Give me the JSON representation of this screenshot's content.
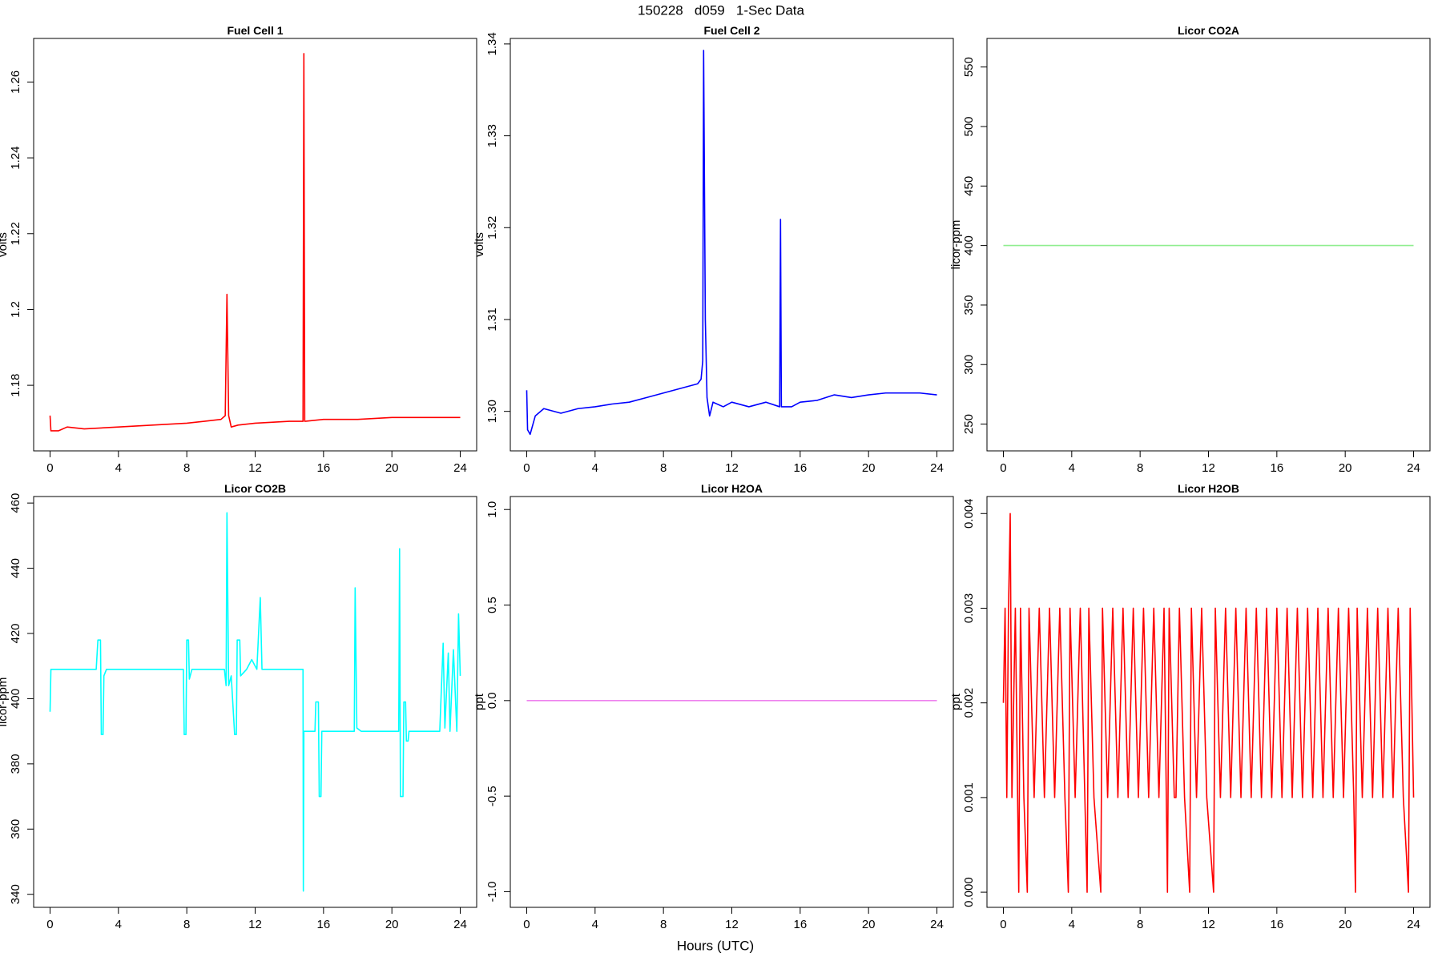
{
  "title": "150228   d059   1-Sec Data",
  "x_label": "Hours (UTC)",
  "chart_data": [
    {
      "type": "line",
      "title": "Fuel Cell 1",
      "y_label": "volts",
      "color": "#ff0000",
      "x": [
        0,
        0.05,
        0.5,
        1,
        2,
        4,
        6,
        8,
        10,
        10.25,
        10.35,
        10.45,
        10.6,
        11,
        12,
        14,
        14.8,
        14.85,
        14.9,
        16,
        18,
        20,
        22,
        24
      ],
      "values": [
        1.172,
        1.168,
        1.168,
        1.169,
        1.1685,
        1.169,
        1.1695,
        1.17,
        1.171,
        1.172,
        1.204,
        1.172,
        1.169,
        1.1695,
        1.17,
        1.1705,
        1.1705,
        1.2675,
        1.1705,
        1.171,
        1.171,
        1.1715,
        1.1715,
        1.1715
      ],
      "xlim": [
        -0.96,
        24.96
      ],
      "xticks": [
        0,
        4,
        8,
        12,
        16,
        20,
        24
      ],
      "ylim": [
        1.1627,
        1.2715
      ],
      "yticks": [
        1.18,
        1.2,
        1.22,
        1.24,
        1.26
      ]
    },
    {
      "type": "line",
      "title": "Fuel Cell 2",
      "y_label": "volts",
      "color": "#0000ff",
      "x": [
        0,
        0.05,
        0.2,
        0.5,
        1,
        2,
        3,
        4,
        5,
        6,
        7,
        8,
        9,
        10,
        10.2,
        10.3,
        10.35,
        10.45,
        10.55,
        10.7,
        10.9,
        11.5,
        12,
        13,
        14,
        14.8,
        14.85,
        14.9,
        15.5,
        16,
        17,
        18,
        19,
        20,
        21,
        22,
        23,
        24
      ],
      "values": [
        1.3023,
        1.298,
        1.2975,
        1.2995,
        1.3003,
        1.2998,
        1.3003,
        1.3005,
        1.3008,
        1.301,
        1.3015,
        1.302,
        1.3025,
        1.303,
        1.3035,
        1.3055,
        1.3393,
        1.31,
        1.3015,
        1.2995,
        1.301,
        1.3005,
        1.301,
        1.3005,
        1.301,
        1.3005,
        1.3209,
        1.3005,
        1.3005,
        1.301,
        1.3012,
        1.3018,
        1.3015,
        1.3018,
        1.302,
        1.302,
        1.302,
        1.3018
      ],
      "xlim": [
        -0.96,
        24.96
      ],
      "xticks": [
        0,
        4,
        8,
        12,
        16,
        20,
        24
      ],
      "ylim": [
        1.2957,
        1.3406
      ],
      "yticks": [
        {
          "value": 1.3,
          "label": "1.30"
        },
        1.31,
        1.32,
        1.33,
        1.34
      ]
    },
    {
      "type": "line",
      "title": "Licor CO2A",
      "y_label": "licor-ppm",
      "color": "#90ee90",
      "x": [
        0,
        24
      ],
      "values": [
        400,
        400
      ],
      "xlim": [
        -0.96,
        24.96
      ],
      "xticks": [
        0,
        4,
        8,
        12,
        16,
        20,
        24
      ],
      "ylim": [
        227.5,
        574
      ],
      "yticks": [
        250,
        300,
        350,
        400,
        450,
        500,
        550
      ]
    },
    {
      "type": "line",
      "title": "Licor CO2B",
      "y_label": "licor-ppm",
      "color": "#00ffff",
      "x": [
        0,
        0.05,
        2.7,
        2.8,
        2.95,
        3.0,
        3.1,
        3.15,
        3.3,
        7.8,
        7.85,
        7.95,
        8.0,
        8.1,
        8.15,
        8.3,
        10.2,
        10.3,
        10.35,
        10.45,
        10.6,
        10.8,
        10.9,
        10.95,
        11.1,
        11.15,
        11.5,
        11.8,
        12.1,
        12.3,
        12.4,
        14.8,
        14.82,
        14.85,
        15.5,
        15.55,
        15.7,
        15.75,
        15.85,
        15.9,
        17.8,
        17.85,
        17.95,
        18.2,
        20.4,
        20.45,
        20.5,
        20.65,
        20.7,
        20.8,
        20.85,
        20.95,
        21,
        22.8,
        23,
        23.1,
        23.3,
        23.4,
        23.6,
        23.8,
        23.9,
        24
      ],
      "values": [
        396,
        409,
        409,
        418,
        418,
        389,
        389,
        407,
        409,
        409,
        389,
        389,
        418,
        418,
        406,
        409,
        409,
        404,
        457,
        404,
        407,
        389,
        389,
        418,
        418,
        407,
        409,
        412,
        409,
        431,
        409,
        409,
        341,
        390,
        390,
        399,
        399,
        370,
        370,
        390,
        390,
        434,
        391,
        390,
        390,
        446,
        370,
        370,
        399,
        399,
        387,
        387,
        390,
        390,
        417,
        391,
        414,
        390,
        415,
        390,
        426,
        407
      ],
      "xlim": [
        -0.96,
        24.96
      ],
      "xticks": [
        0,
        4,
        8,
        12,
        16,
        20,
        24
      ],
      "ylim": [
        336,
        462
      ],
      "yticks": [
        340,
        360,
        380,
        400,
        420,
        440,
        460
      ]
    },
    {
      "type": "line",
      "title": "Licor H2OA",
      "y_label": "ppt",
      "color": "#ee82ee",
      "x": [
        0,
        24
      ],
      "values": [
        0,
        0
      ],
      "xlim": [
        -0.96,
        24.96
      ],
      "xticks": [
        0,
        4,
        8,
        12,
        16,
        20,
        24
      ],
      "ylim": [
        -1.082,
        1.068
      ],
      "yticks": [
        {
          "value": -1,
          "label": "-1.0"
        },
        -0.5,
        {
          "value": 0,
          "label": "0.0"
        },
        0.5,
        {
          "value": 1,
          "label": "1.0"
        }
      ]
    },
    {
      "type": "line",
      "title": "Licor H2OB",
      "y_label": "ppt",
      "color": "#ff0000",
      "x": [
        0,
        0.1,
        0.2,
        0.3,
        0.4,
        0.5,
        0.7,
        0.9,
        1.0,
        1.2,
        1.4,
        1.5,
        1.8,
        2.1,
        2.4,
        2.7,
        3.0,
        3.3,
        3.6,
        3.8,
        3.9,
        4.2,
        4.5,
        4.9,
        5.0,
        5.3,
        5.7,
        5.8,
        6.1,
        6.4,
        6.7,
        7.0,
        7.3,
        7.6,
        7.9,
        8.2,
        8.5,
        8.8,
        9.1,
        9.4,
        9.6,
        9.7,
        10.0,
        10.1,
        10.3,
        10.6,
        10.9,
        11.0,
        11.3,
        11.6,
        11.9,
        12.3,
        12.4,
        12.7,
        13.0,
        13.3,
        13.6,
        13.9,
        14.2,
        14.5,
        14.8,
        15.1,
        15.4,
        15.7,
        16.0,
        16.3,
        16.6,
        16.9,
        17.2,
        17.5,
        17.8,
        18.1,
        18.4,
        18.7,
        19.0,
        19.3,
        19.6,
        19.9,
        20.2,
        20.5,
        20.6,
        20.7,
        21.0,
        21.3,
        21.6,
        21.9,
        22.2,
        22.5,
        22.8,
        23.1,
        23.4,
        23.7,
        23.8,
        24.0
      ],
      "values": [
        0.002,
        0.003,
        0.001,
        0.003,
        0.004,
        0.001,
        0.003,
        0,
        0.003,
        0.001,
        0,
        0.003,
        0.001,
        0.003,
        0.001,
        0.003,
        0.001,
        0.003,
        0.001,
        0,
        0.003,
        0.001,
        0.003,
        0,
        0.003,
        0.001,
        0,
        0.003,
        0.001,
        0.003,
        0.001,
        0.003,
        0.001,
        0.003,
        0.001,
        0.003,
        0.001,
        0.003,
        0.001,
        0.003,
        0,
        0.003,
        0.001,
        0.001,
        0.003,
        0.001,
        0,
        0.003,
        0.001,
        0.003,
        0.001,
        0,
        0.003,
        0.001,
        0.003,
        0.001,
        0.003,
        0.001,
        0.003,
        0.001,
        0.003,
        0.001,
        0.003,
        0.001,
        0.003,
        0.001,
        0.003,
        0.001,
        0.003,
        0.001,
        0.003,
        0.001,
        0.003,
        0.001,
        0.003,
        0.001,
        0.003,
        0.001,
        0.003,
        0.001,
        0,
        0.003,
        0.001,
        0.003,
        0.001,
        0.003,
        0.001,
        0.003,
        0.001,
        0.003,
        0.001,
        0,
        0.003,
        0.001
      ],
      "xlim": [
        -0.96,
        24.96
      ],
      "xticks": [
        0,
        4,
        8,
        12,
        16,
        20,
        24
      ],
      "ylim": [
        -0.00016,
        0.00418
      ],
      "yticks": [
        {
          "value": 0,
          "label": "0.000"
        },
        {
          "value": 0.001,
          "label": "0.001"
        },
        {
          "value": 0.002,
          "label": "0.002"
        },
        {
          "value": 0.003,
          "label": "0.003"
        },
        {
          "value": 0.004,
          "label": "0.004"
        }
      ]
    }
  ]
}
